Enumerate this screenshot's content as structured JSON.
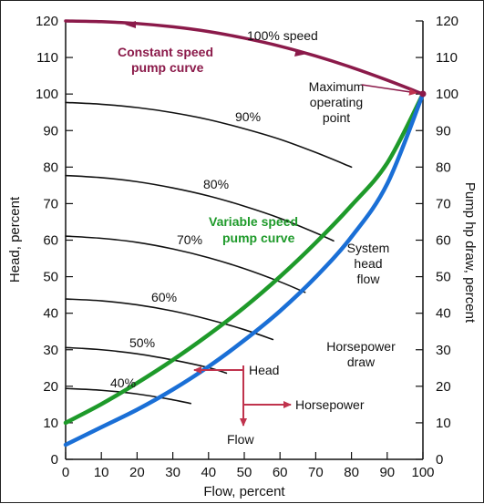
{
  "chart_data": {
    "type": "line",
    "title": "",
    "xlabel": "Flow, percent",
    "ylabel": "Head, percent",
    "y2label": "Pump hp draw, percent",
    "xlim": [
      0,
      100
    ],
    "ylim": [
      0,
      120
    ],
    "x_ticks": [
      "0",
      "10",
      "20",
      "30",
      "40",
      "50",
      "60",
      "70",
      "80",
      "90",
      "100"
    ],
    "y_ticks": [
      "0",
      "10",
      "20",
      "30",
      "40",
      "50",
      "60",
      "70",
      "80",
      "90",
      "100",
      "110",
      "120"
    ],
    "y2_ticks": [
      "0",
      "10",
      "20",
      "30",
      "40",
      "50",
      "60",
      "70",
      "80",
      "90",
      "100",
      "110",
      "120"
    ],
    "series": [
      {
        "name": "Constant speed pump curve",
        "color": "#8b1a4a",
        "x": [
          0,
          10,
          20,
          30,
          40,
          50,
          60,
          70,
          80,
          90,
          100
        ],
        "y": [
          120,
          119.8,
          119.3,
          118.4,
          117.1,
          115.3,
          113.1,
          110.4,
          107.3,
          103.8,
          100
        ]
      },
      {
        "name": "90%",
        "color": "#111111",
        "x": [
          0,
          10,
          20,
          30,
          40,
          50,
          60,
          70,
          80
        ],
        "y": [
          97.7,
          97.2,
          96.3,
          94.9,
          93.0,
          90.5,
          87.6,
          84.0,
          80.0
        ]
      },
      {
        "name": "80%",
        "color": "#111111",
        "x": [
          0,
          10,
          20,
          30,
          40,
          50,
          60,
          70,
          75
        ],
        "y": [
          77.7,
          77.1,
          76.0,
          74.3,
          72.1,
          69.3,
          66.0,
          62.0,
          59.8
        ]
      },
      {
        "name": "70%",
        "color": "#111111",
        "x": [
          0,
          10,
          20,
          30,
          40,
          50,
          60,
          67
        ],
        "y": [
          61.1,
          60.5,
          59.4,
          57.6,
          55.2,
          52.2,
          48.6,
          45.7
        ]
      },
      {
        "name": "60%",
        "color": "#111111",
        "x": [
          0,
          10,
          20,
          30,
          40,
          50,
          58
        ],
        "y": [
          43.9,
          43.4,
          42.3,
          40.6,
          38.3,
          35.5,
          32.8
        ]
      },
      {
        "name": "50%",
        "color": "#111111",
        "x": [
          0,
          10,
          20,
          30,
          40,
          45
        ],
        "y": [
          30.6,
          30.0,
          28.9,
          27.2,
          25.1,
          23.6
        ]
      },
      {
        "name": "40%",
        "color": "#111111",
        "x": [
          0,
          10,
          20,
          30,
          35
        ],
        "y": [
          19.4,
          18.9,
          17.9,
          16.3,
          15.3
        ]
      },
      {
        "name": "Variable speed pump curve",
        "color": "#1e9a2a",
        "x": [
          0,
          10,
          20,
          30,
          40,
          50,
          60,
          70,
          80,
          90,
          100
        ],
        "y": [
          10,
          15.1,
          20.9,
          27.2,
          34.1,
          41.6,
          50.0,
          59.3,
          69.5,
          81.1,
          100
        ]
      },
      {
        "name": "System head flow",
        "color": "#1a6fd6",
        "x": [
          0,
          10,
          20,
          30,
          40,
          50,
          60,
          70,
          80,
          90,
          100
        ],
        "y": [
          4,
          8.8,
          13.6,
          19.1,
          25.4,
          32.6,
          40.6,
          49.9,
          60.9,
          75.4,
          100
        ]
      }
    ],
    "annotations": {
      "speed100": "100% speed",
      "constant_speed_line1": "Constant speed",
      "constant_speed_line2": "pump curve",
      "max_line1": "Maximum",
      "max_line2": "operating",
      "max_line3": "point",
      "pct90": "90%",
      "pct80": "80%",
      "pct70": "70%",
      "pct60": "60%",
      "pct50": "50%",
      "pct40": "40%",
      "variable_line1": "Variable speed",
      "variable_line2": "pump curve",
      "system_line1": "System",
      "system_line2": "head",
      "system_line3": "flow",
      "hp_draw_line1": "Horsepower",
      "hp_draw_line2": "draw",
      "head": "Head",
      "horsepower": "Horsepower",
      "flow": "Flow"
    },
    "arrow_color": "#c0334d",
    "grid": false,
    "legend": "none"
  }
}
